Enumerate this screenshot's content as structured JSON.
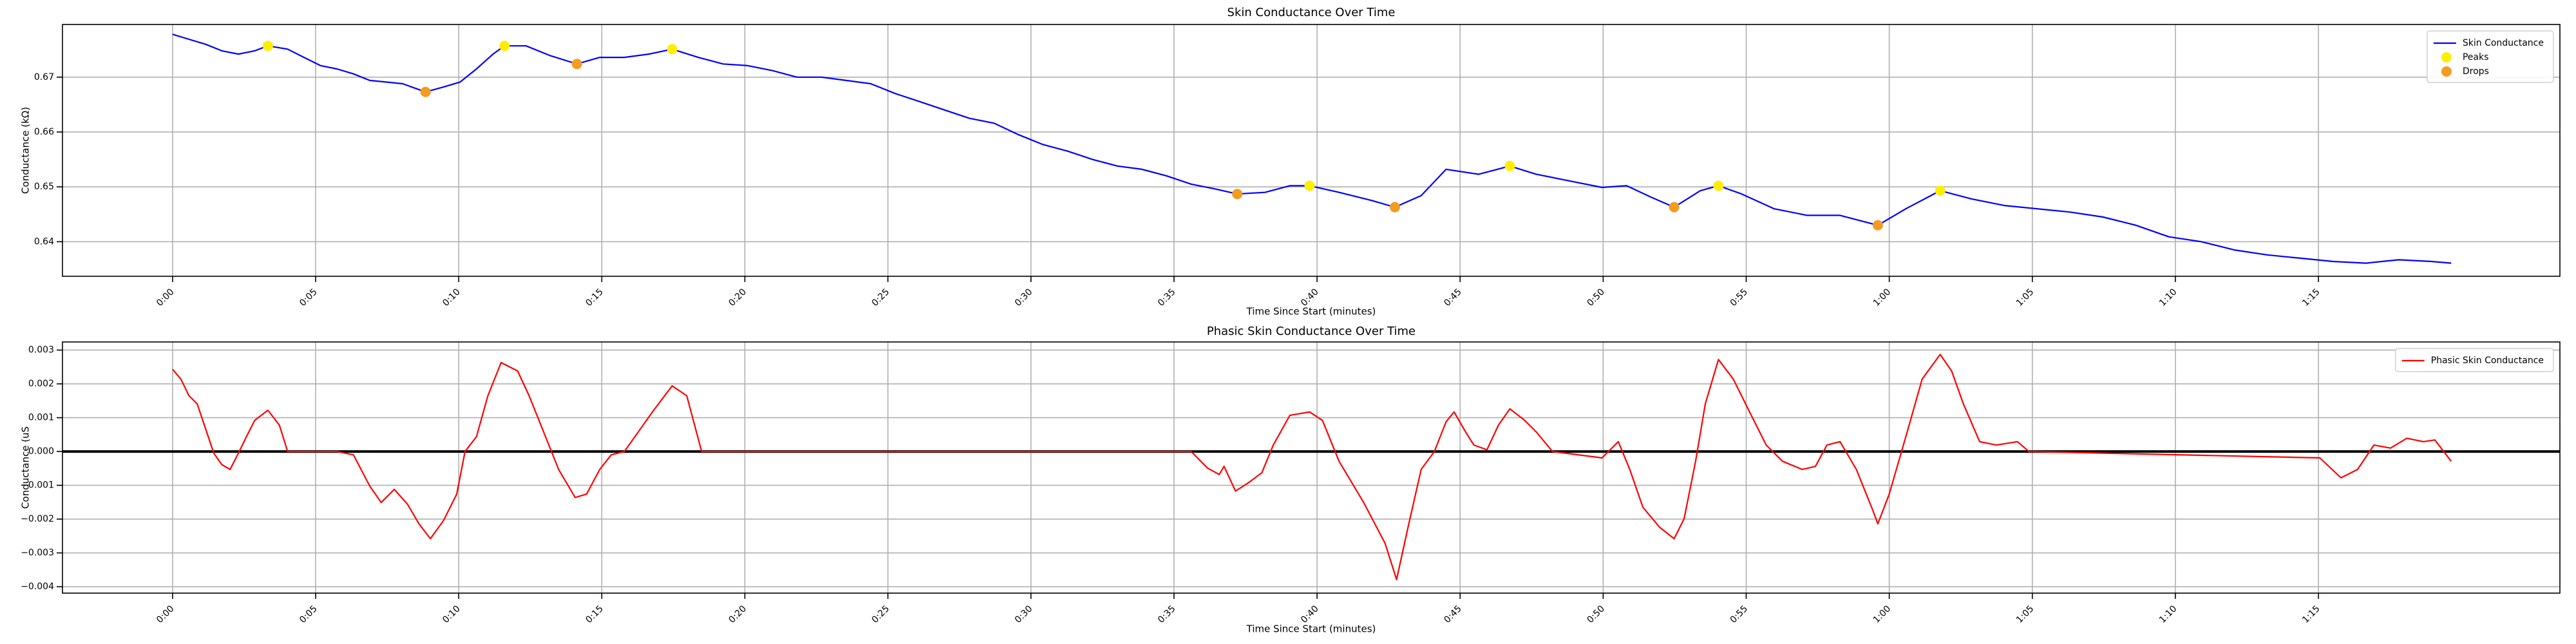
{
  "chart_data": [
    {
      "type": "line",
      "title": "Skin Conductance Over Time",
      "x_label": "Time Since Start (minutes)",
      "y_label": "Conductance (kΩ)",
      "xlim": [
        -3.85,
        83.44
      ],
      "ylim": [
        0.6337,
        0.6796
      ],
      "xticks": [
        {
          "value": 0,
          "label": "0:00"
        },
        {
          "value": 5,
          "label": "0:05"
        },
        {
          "value": 10,
          "label": "0:10"
        },
        {
          "value": 15,
          "label": "0:15"
        },
        {
          "value": 20,
          "label": "0:20"
        },
        {
          "value": 25,
          "label": "0:25"
        },
        {
          "value": 30,
          "label": "0:30"
        },
        {
          "value": 35,
          "label": "0:35"
        },
        {
          "value": 40,
          "label": "0:40"
        },
        {
          "value": 45,
          "label": "0:45"
        },
        {
          "value": 50,
          "label": "0:50"
        },
        {
          "value": 55,
          "label": "0:55"
        },
        {
          "value": 60,
          "label": "1:00"
        },
        {
          "value": 65,
          "label": "1:05"
        },
        {
          "value": 70,
          "label": "1:10"
        },
        {
          "value": 75,
          "label": "1:15"
        }
      ],
      "yticks": [
        0.64,
        0.65,
        0.66,
        0.67
      ],
      "grid": true,
      "legend": "upper right",
      "series": [
        {
          "name": "Skin Conductance",
          "type": "line",
          "color": "#0000ff",
          "x": [
            0,
            0.57,
            1.15,
            1.72,
            2.3,
            2.87,
            3.33,
            4.02,
            4.59,
            5.17,
            5.74,
            6.32,
            6.89,
            7.46,
            8.04,
            8.84,
            9.47,
            10.05,
            10.62,
            11.2,
            11.6,
            12.35,
            13.21,
            14.13,
            14.93,
            15.79,
            16.65,
            17.46,
            18.37,
            19.24,
            20.1,
            20.96,
            21.82,
            22.68,
            23.54,
            24.4,
            25.26,
            26.13,
            26.99,
            27.85,
            28.71,
            29.57,
            30.43,
            31.29,
            32.15,
            33.02,
            33.88,
            34.74,
            35.6,
            36.46,
            37.21,
            38.18,
            39.05,
            39.74,
            40.77,
            41.92,
            42.72,
            43.64,
            44.51,
            45.65,
            46.74,
            47.66,
            48.81,
            49.96,
            50.82,
            51.68,
            52.48,
            53.4,
            54.03,
            54.84,
            55.98,
            57.13,
            58.28,
            59.6,
            60.58,
            61.78,
            62.88,
            64.02,
            65.17,
            66.32,
            67.47,
            68.62,
            69.77,
            70.91,
            72.06,
            73.21,
            74.36,
            75.51,
            76.66,
            77.81,
            78.95,
            79.64
          ],
          "values": [
            0.6778,
            0.6769,
            0.676,
            0.6748,
            0.6742,
            0.6748,
            0.6757,
            0.6751,
            0.6736,
            0.6721,
            0.6715,
            0.6706,
            0.6694,
            0.6691,
            0.6688,
            0.6673,
            0.6682,
            0.6691,
            0.6715,
            0.6742,
            0.6757,
            0.6757,
            0.6739,
            0.6724,
            0.6736,
            0.6736,
            0.6742,
            0.6751,
            0.6736,
            0.6724,
            0.6721,
            0.6712,
            0.67,
            0.67,
            0.6694,
            0.6688,
            0.667,
            0.6655,
            0.664,
            0.6625,
            0.6616,
            0.6595,
            0.6577,
            0.6565,
            0.655,
            0.6538,
            0.6532,
            0.652,
            0.6505,
            0.6496,
            0.6487,
            0.649,
            0.6502,
            0.6502,
            0.649,
            0.6475,
            0.6463,
            0.6484,
            0.6532,
            0.6523,
            0.6538,
            0.6523,
            0.6511,
            0.6499,
            0.6502,
            0.6481,
            0.6463,
            0.6493,
            0.6502,
            0.6487,
            0.646,
            0.6448,
            0.6448,
            0.643,
            0.646,
            0.6493,
            0.6478,
            0.6466,
            0.646,
            0.6454,
            0.6445,
            0.643,
            0.6409,
            0.64,
            0.6385,
            0.6376,
            0.637,
            0.6364,
            0.6361,
            0.6367,
            0.6364,
            0.6361
          ]
        },
        {
          "name": "Peaks",
          "type": "scatter",
          "color": "#ffee00",
          "x": [
            3.33,
            11.6,
            17.46,
            39.74,
            46.74,
            54.03,
            61.78
          ],
          "values": [
            0.6757,
            0.6757,
            0.6751,
            0.6502,
            0.6538,
            0.6502,
            0.6493
          ]
        },
        {
          "name": "Drops",
          "type": "scatter",
          "color": "#f39c1f",
          "x": [
            8.84,
            14.13,
            37.21,
            42.72,
            52.48,
            59.6
          ],
          "values": [
            0.6673,
            0.6724,
            0.6487,
            0.6463,
            0.6463,
            0.643
          ]
        }
      ]
    },
    {
      "type": "line",
      "title": "Phasic Skin Conductance Over Time",
      "x_label": "Time Since Start (minutes)",
      "y_label": "Conductance (uS",
      "xlim": [
        -3.85,
        83.44
      ],
      "ylim": [
        -0.00419,
        0.00324
      ],
      "xticks": [
        {
          "value": 0,
          "label": "0:00"
        },
        {
          "value": 5,
          "label": "0:05"
        },
        {
          "value": 10,
          "label": "0:10"
        },
        {
          "value": 15,
          "label": "0:15"
        },
        {
          "value": 20,
          "label": "0:20"
        },
        {
          "value": 25,
          "label": "0:25"
        },
        {
          "value": 30,
          "label": "0:30"
        },
        {
          "value": 35,
          "label": "0:35"
        },
        {
          "value": 40,
          "label": "0:40"
        },
        {
          "value": 45,
          "label": "0:45"
        },
        {
          "value": 50,
          "label": "0:50"
        },
        {
          "value": 55,
          "label": "0:55"
        },
        {
          "value": 60,
          "label": "1:00"
        },
        {
          "value": 65,
          "label": "1:05"
        },
        {
          "value": 70,
          "label": "1:10"
        },
        {
          "value": 75,
          "label": "1:15"
        }
      ],
      "yticks": [
        {
          "value": -0.004,
          "label": "−0.004"
        },
        {
          "value": -0.003,
          "label": "−0.003"
        },
        {
          "value": -0.002,
          "label": "−0.002"
        },
        {
          "value": -0.001,
          "label": "−0.001"
        },
        {
          "value": 0,
          "label": "0.000"
        },
        0.001,
        0.002,
        0.003
      ],
      "grid": true,
      "legend": "upper right",
      "hline": 0,
      "series": [
        {
          "name": "Phasic Skin Conductance",
          "type": "line",
          "color": "#ff0000",
          "x": [
            0,
            0.29,
            0.57,
            0.86,
            1.15,
            1.44,
            1.72,
            2.01,
            2.3,
            2.58,
            2.87,
            3.33,
            3.73,
            4.02,
            5.74,
            6.32,
            6.89,
            7.29,
            7.75,
            8.21,
            8.61,
            9.01,
            9.47,
            9.93,
            10.22,
            10.62,
            11.02,
            11.48,
            12.06,
            12.46,
            12.92,
            13.49,
            14.07,
            14.47,
            14.93,
            15.33,
            15.79,
            16.36,
            16.77,
            17.46,
            17.97,
            18.49,
            35.6,
            36.17,
            36.58,
            36.75,
            37.15,
            37.61,
            38.07,
            38.47,
            39.05,
            39.74,
            40.19,
            40.77,
            41.63,
            42.38,
            42.78,
            43.18,
            43.64,
            44.1,
            44.51,
            44.79,
            45.19,
            45.48,
            45.94,
            46.34,
            46.74,
            47.26,
            47.66,
            48.23,
            49.96,
            50.53,
            50.93,
            51.39,
            51.97,
            52.48,
            52.83,
            53.23,
            53.57,
            54.03,
            54.55,
            55.12,
            55.7,
            56.27,
            56.96,
            57.42,
            57.82,
            58.28,
            58.85,
            59.43,
            59.6,
            60.0,
            60.58,
            61.15,
            61.78,
            62.18,
            62.59,
            63.16,
            63.74,
            64.48,
            64.88,
            75.05,
            75.79,
            76.37,
            76.94,
            77.52,
            78.09,
            78.67,
            79.07,
            79.64
          ],
          "values": [
            0.00243,
            0.00214,
            0.00165,
            0.00141,
            0.00068,
            -5e-05,
            -0.00039,
            -0.00053,
            -5e-05,
            0.00044,
            0.00092,
            0.00122,
            0.00078,
            0,
            0,
            -0.0001,
            -0.00102,
            -0.00151,
            -0.00112,
            -0.00156,
            -0.00214,
            -0.00258,
            -0.00204,
            -0.00126,
            0,
            0.00044,
            0.00165,
            0.00263,
            0.00238,
            0.00165,
            0.00068,
            -0.00053,
            -0.00136,
            -0.00126,
            -0.00053,
            -0.0001,
            0,
            0.00068,
            0.00117,
            0.00194,
            0.00165,
            0,
            0,
            -0.00049,
            -0.00068,
            -0.00044,
            -0.00117,
            -0.00092,
            -0.00063,
            0.00019,
            0.00107,
            0.00117,
            0.00092,
            -0.00029,
            -0.00151,
            -0.00272,
            -0.00379,
            -0.00224,
            -0.00053,
            0,
            0.00088,
            0.00117,
            0.00058,
            0.00019,
            5e-05,
            0.00078,
            0.00126,
            0.00092,
            0.00058,
            0,
            -0.00019,
            0.00029,
            -0.00053,
            -0.00165,
            -0.00224,
            -0.00258,
            -0.00199,
            -0.00029,
            0.00141,
            0.00272,
            0.00214,
            0.00117,
            0.00019,
            -0.00029,
            -0.00053,
            -0.00044,
            0.00019,
            0.00029,
            -0.00053,
            -0.00175,
            -0.00214,
            -0.00126,
            0.00044,
            0.00214,
            0.00287,
            0.00238,
            0.00141,
            0.00029,
            0.00019,
            0.00029,
            0,
            -0.00019,
            -0.00078,
            -0.00053,
            0.00019,
            0.0001,
            0.00039,
            0.00029,
            0.00034,
            -0.00029
          ]
        }
      ]
    }
  ]
}
